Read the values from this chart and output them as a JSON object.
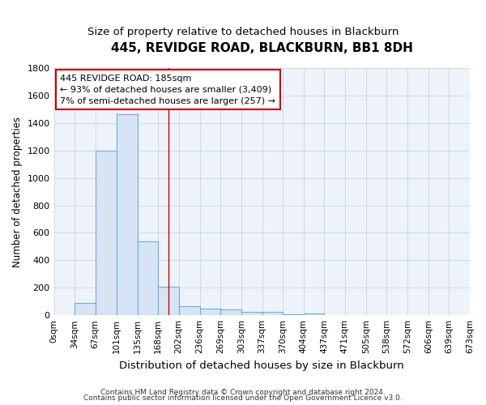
{
  "title": "445, REVIDGE ROAD, BLACKBURN, BB1 8DH",
  "subtitle": "Size of property relative to detached houses in Blackburn",
  "xlabel": "Distribution of detached houses by size in Blackburn",
  "ylabel": "Number of detached properties",
  "footnote1": "Contains HM Land Registry data © Crown copyright and database right 2024.",
  "footnote2": "Contains public sector information licensed under the Open Government Licence v3.0.",
  "bar_left_edges": [
    0,
    34,
    67,
    101,
    135,
    168,
    202,
    236,
    269,
    303,
    337,
    370,
    404,
    437,
    471,
    505,
    538,
    572,
    606,
    639
  ],
  "bar_widths": [
    34,
    33,
    34,
    34,
    33,
    34,
    34,
    33,
    34,
    34,
    33,
    34,
    33,
    34,
    34,
    33,
    34,
    34,
    33,
    34
  ],
  "bar_heights": [
    0,
    90,
    1200,
    1465,
    540,
    205,
    65,
    50,
    45,
    25,
    22,
    5,
    15,
    0,
    0,
    0,
    0,
    0,
    0,
    0
  ],
  "tick_labels": [
    "0sqm",
    "34sqm",
    "67sqm",
    "101sqm",
    "135sqm",
    "168sqm",
    "202sqm",
    "236sqm",
    "269sqm",
    "303sqm",
    "337sqm",
    "370sqm",
    "404sqm",
    "437sqm",
    "471sqm",
    "505sqm",
    "538sqm",
    "572sqm",
    "606sqm",
    "639sqm",
    "673sqm"
  ],
  "bar_facecolor": "#d6e4f5",
  "bar_edgecolor": "#6aaed6",
  "plot_bg_color": "#eef3fa",
  "fig_bg_color": "#ffffff",
  "grid_color": "#c8d4e0",
  "red_line_x": 185,
  "annotation_text": "445 REVIDGE ROAD: 185sqm\n← 93% of detached houses are smaller (3,409)\n7% of semi-detached houses are larger (257) →",
  "ylim": [
    0,
    1800
  ],
  "xlim": [
    0,
    673
  ],
  "yticks": [
    0,
    200,
    400,
    600,
    800,
    1000,
    1200,
    1400,
    1600,
    1800
  ],
  "title_fontsize": 11,
  "subtitle_fontsize": 9.5,
  "ylabel_fontsize": 8.5,
  "xlabel_fontsize": 9.5,
  "tick_fontsize": 7.5,
  "footnote_fontsize": 6.5
}
